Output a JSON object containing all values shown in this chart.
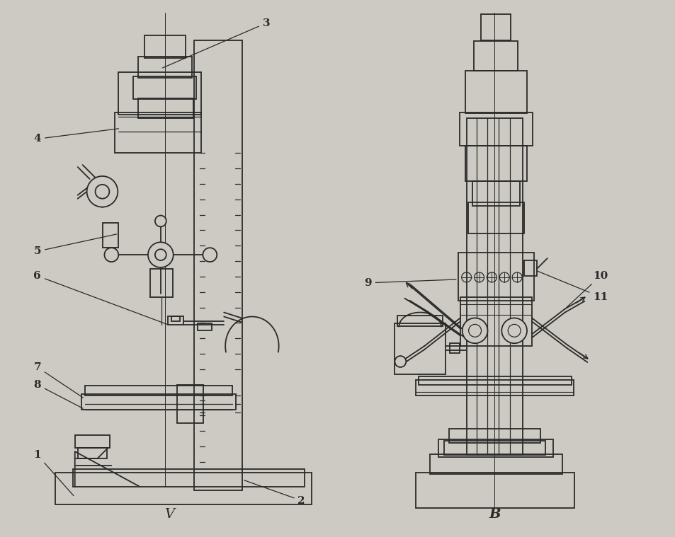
{
  "bg_color": "#cccac2",
  "line_color": "#2a2a2a",
  "lw": 1.3,
  "fig_w": 9.54,
  "fig_h": 7.59
}
